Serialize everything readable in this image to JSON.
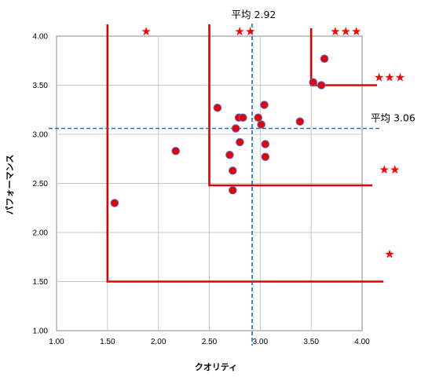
{
  "chart_data": {
    "type": "scatter",
    "xlabel": "クオリティ",
    "ylabel": "パフォーマンス",
    "xlim": [
      1.0,
      4.0
    ],
    "ylim": [
      1.0,
      4.0
    ],
    "x_ticks": [
      "1.00",
      "1.50",
      "2.00",
      "2.50",
      "3.00",
      "3.50",
      "4.00"
    ],
    "y_ticks": [
      "1.00",
      "1.50",
      "2.00",
      "2.50",
      "3.00",
      "3.50",
      "4.00"
    ],
    "grid": true,
    "points": [
      {
        "x": 1.57,
        "y": 2.3
      },
      {
        "x": 2.17,
        "y": 2.83
      },
      {
        "x": 2.58,
        "y": 3.27
      },
      {
        "x": 2.7,
        "y": 2.79
      },
      {
        "x": 2.73,
        "y": 2.63
      },
      {
        "x": 2.73,
        "y": 2.43
      },
      {
        "x": 2.76,
        "y": 3.06
      },
      {
        "x": 2.79,
        "y": 3.17
      },
      {
        "x": 2.8,
        "y": 2.92
      },
      {
        "x": 2.83,
        "y": 3.17
      },
      {
        "x": 2.98,
        "y": 3.17
      },
      {
        "x": 3.01,
        "y": 3.1
      },
      {
        "x": 3.04,
        "y": 3.3
      },
      {
        "x": 3.05,
        "y": 2.9
      },
      {
        "x": 3.05,
        "y": 2.77
      },
      {
        "x": 3.39,
        "y": 3.13
      },
      {
        "x": 3.52,
        "y": 3.53
      },
      {
        "x": 3.6,
        "y": 3.5
      },
      {
        "x": 3.63,
        "y": 3.77
      }
    ],
    "averages": {
      "x": {
        "value": 2.92,
        "label": "平均 2.92"
      },
      "y": {
        "value": 3.06,
        "label": "平均 3.06"
      }
    },
    "zones": [
      {
        "x": 1.5,
        "y": 1.5
      },
      {
        "x": 2.5,
        "y": 2.48
      },
      {
        "x": 3.5,
        "y": 3.5
      }
    ],
    "star_labels": {
      "x_axis": [
        {
          "stars": "★",
          "at": 1.88
        },
        {
          "stars": "★★",
          "at": 2.85
        },
        {
          "stars": "★★★",
          "at": 3.84
        }
      ],
      "y_axis": [
        {
          "stars": "★",
          "at": 1.78
        },
        {
          "stars": "★★",
          "at": 2.64
        },
        {
          "stars": "★★★",
          "at": 3.58
        }
      ]
    },
    "colors": {
      "point_fill": "#e60000",
      "point_stroke": "#5b6fd0",
      "zone_line": "#e00000",
      "average_line": "#1f6fb5",
      "grid": "#c8c8c8",
      "star": "#ff0000"
    }
  }
}
